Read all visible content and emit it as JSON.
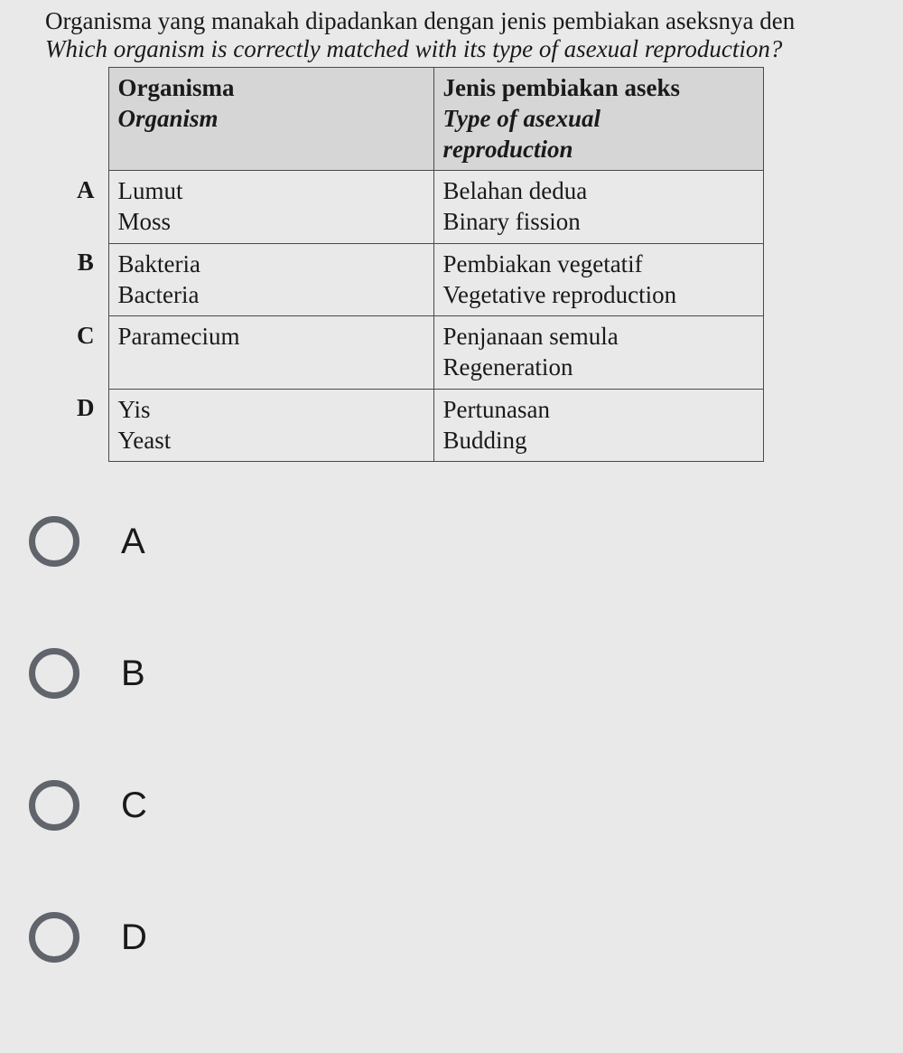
{
  "question": {
    "line1": "Organisma yang manakah dipadankan dengan jenis pembiakan aseksnya den",
    "line2": "Which organism is correctly matched with its type of asexual reproduction?"
  },
  "table": {
    "header": {
      "col1_bold": "Organisma",
      "col1_ital": "Organism",
      "col2_bold": "Jenis pembiakan aseks",
      "col2_ital_l1": "Type of asexual",
      "col2_ital_l2": "reproduction"
    },
    "rows": [
      {
        "label": "A",
        "org1": "Lumut",
        "org2": "Moss",
        "rep1": "Belahan dedua",
        "rep2": "Binary fission"
      },
      {
        "label": "B",
        "org1": "Bakteria",
        "org2": "Bacteria",
        "rep1": "Pembiakan vegetatif",
        "rep2": "Vegetative reproduction"
      },
      {
        "label": "C",
        "org1": "Paramecium",
        "org2": "",
        "rep1": "Penjanaan semula",
        "rep2": "Regeneration"
      },
      {
        "label": "D",
        "org1": "Yis",
        "org2": "Yeast",
        "rep1": "Pertunasan",
        "rep2": "Budding"
      }
    ]
  },
  "answers": {
    "options": [
      "A",
      "B",
      "C",
      "D"
    ]
  },
  "colors": {
    "page_bg": "#e9e9e9",
    "header_bg": "#d6d6d6",
    "border": "#4a4a4a",
    "radio_ring": "#60646b",
    "text": "#1a1a1a"
  }
}
